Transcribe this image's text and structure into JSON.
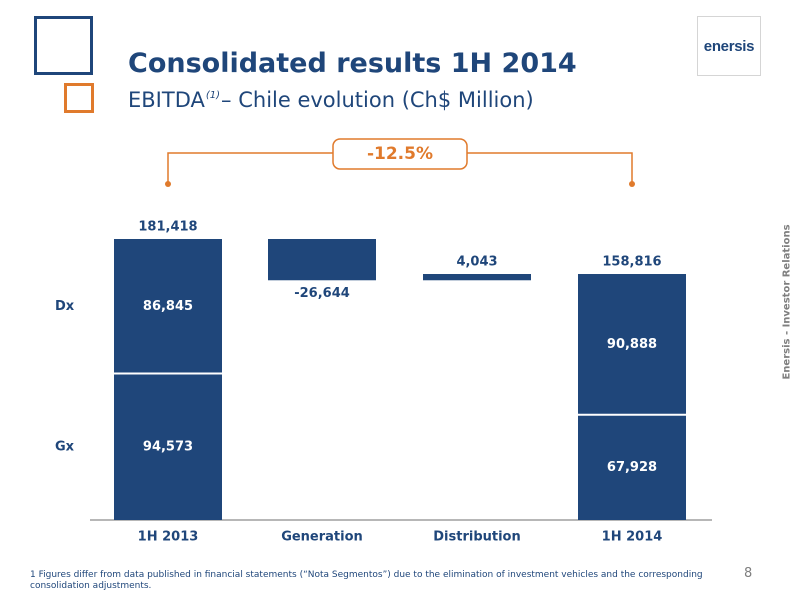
{
  "header": {
    "title": "Consolidated results 1H 2014",
    "subtitle_before": "EBITDA",
    "subtitle_sup": "(1)",
    "subtitle_after": "– Chile evolution (Ch$ Million)"
  },
  "logo": {
    "text": "enersis"
  },
  "side_label": "Enersis - Investor Relations",
  "footnote": "1 Figures differ from data published in financial statements (“Nota Segmentos”) due to the elimination of investment vehicles and the corresponding consolidation adjustments.",
  "page_number": "8",
  "colors": {
    "bar": "#1f467a",
    "accent": "#e07a2c",
    "axis": "#8c8c8c"
  },
  "chart_data": {
    "type": "bar",
    "subtype": "waterfall",
    "categories": [
      "1H 2013",
      "Generation",
      "Distribution",
      "1H 2014"
    ],
    "segment_labels": [
      "Dx",
      "Gx"
    ],
    "change_annotation": "-12.5%",
    "bars": [
      {
        "category": "1H 2013",
        "kind": "total",
        "total": 181418,
        "total_label": "181,418",
        "segments": [
          {
            "name": "Gx",
            "value": 94573,
            "label": "94,573"
          },
          {
            "name": "Dx",
            "value": 86845,
            "label": "86,845"
          }
        ]
      },
      {
        "category": "Generation",
        "kind": "delta",
        "start": 181418,
        "value": -26644,
        "label": "-26,644"
      },
      {
        "category": "Distribution",
        "kind": "delta",
        "start": 154774,
        "value": 4043,
        "label": "4,043"
      },
      {
        "category": "1H 2014",
        "kind": "total",
        "total": 158816,
        "total_label": "158,816",
        "segments": [
          {
            "name": "Gx",
            "value": 67928,
            "label": "67,928"
          },
          {
            "name": "Dx",
            "value": 90888,
            "label": "90,888"
          }
        ]
      }
    ],
    "ylim": [
      0,
      181418
    ],
    "grid": false,
    "legend": "none"
  }
}
